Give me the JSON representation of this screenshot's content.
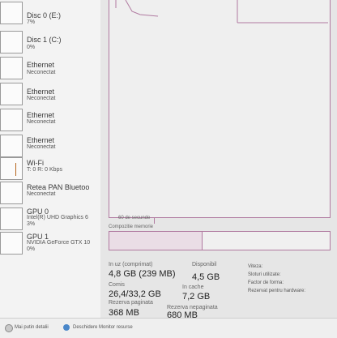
{
  "sidebar": {
    "items": [
      {
        "name": "Disc 0 (E:)",
        "sub": "7%"
      },
      {
        "name": "Disc 1 (C:)",
        "sub": "0%"
      },
      {
        "name": "Ethernet",
        "sub": "Neconectat"
      },
      {
        "name": "Ethernet",
        "sub": "Neconectat"
      },
      {
        "name": "Ethernet",
        "sub": "Neconectat"
      },
      {
        "name": "Ethernet",
        "sub": "Neconectat"
      },
      {
        "name": "Wi-Fi",
        "sub": "T: 0 R: 0 Kbps"
      },
      {
        "name": "Retea PAN Bluetoo",
        "sub": "Neconectat"
      },
      {
        "name": "GPU 0",
        "sub": "Intel(R) UHD Graphics 6",
        "sub2": "3%"
      },
      {
        "name": "GPU 1",
        "sub": "NVIDIA GeForce GTX 10",
        "sub2": "0%"
      }
    ]
  },
  "graph": {
    "axis_label": "60 de secunde",
    "composition_label": "Compozitie memorie"
  },
  "stats": {
    "in_use_label": "In uz (comprimat)",
    "in_use_value": "4,8 GB (239 MB)",
    "available_label": "Disponibil",
    "available_value": "4,5 GB",
    "committed_label": "Comis",
    "committed_value": "26,4/33,2 GB",
    "cached_label": "In cache",
    "cached_value": "7,2 GB",
    "paged_label": "Rezerva paginata",
    "paged_value": "368 MB",
    "nonpaged_label": "Rezerva nepaginata",
    "nonpaged_value": "680 MB"
  },
  "details": {
    "speed": "Viteza:",
    "slots": "Sloturi utilizate:",
    "form": "Factor de forma:",
    "reserved": "Rezervat pentru hardware:"
  },
  "footer": {
    "fewer_details": "Mai putin detalii",
    "open_monitor": "Deschidere Monitor resurse"
  }
}
